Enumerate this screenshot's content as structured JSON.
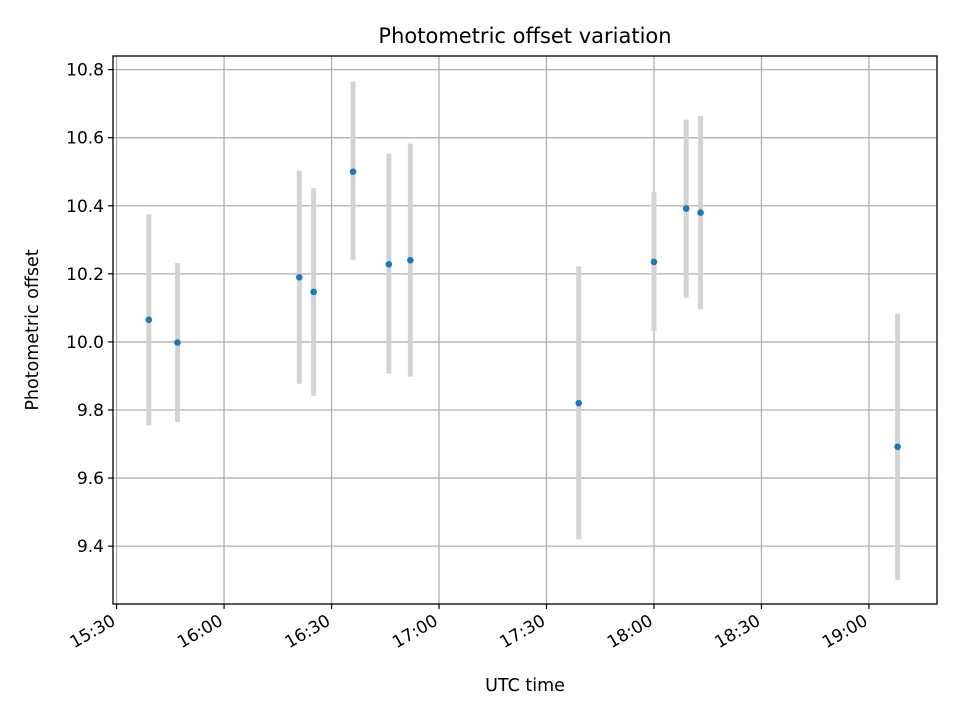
{
  "chart_data": {
    "type": "scatter",
    "title": "Photometric offset variation",
    "xlabel": "UTC time",
    "ylabel": "Photometric offset",
    "x_ticks": [
      "15:30",
      "16:00",
      "16:30",
      "17:00",
      "17:30",
      "18:00",
      "18:30",
      "19:00"
    ],
    "y_ticks": [
      "9.4",
      "9.6",
      "9.8",
      "10.0",
      "10.2",
      "10.4",
      "10.6",
      "10.8"
    ],
    "xlim": [
      "15:29",
      "19:19"
    ],
    "ylim": [
      9.23,
      10.84
    ],
    "grid": true,
    "point_color": "#1f77b4",
    "errorbar_color": "#d3d3d3",
    "points": [
      {
        "x": "15:39",
        "y": 10.065,
        "ylow": 9.755,
        "yhigh": 10.375
      },
      {
        "x": "15:47",
        "y": 9.998,
        "ylow": 9.765,
        "yhigh": 10.232
      },
      {
        "x": "16:21",
        "y": 10.19,
        "ylow": 9.877,
        "yhigh": 10.503
      },
      {
        "x": "16:25",
        "y": 10.147,
        "ylow": 9.842,
        "yhigh": 10.452
      },
      {
        "x": "16:36",
        "y": 10.5,
        "ylow": 10.24,
        "yhigh": 10.765
      },
      {
        "x": "16:46",
        "y": 10.228,
        "ylow": 9.907,
        "yhigh": 10.554
      },
      {
        "x": "16:52",
        "y": 10.24,
        "ylow": 9.898,
        "yhigh": 10.583
      },
      {
        "x": "17:39",
        "y": 9.82,
        "ylow": 9.42,
        "yhigh": 10.222
      },
      {
        "x": "18:00",
        "y": 10.235,
        "ylow": 10.032,
        "yhigh": 10.44
      },
      {
        "x": "18:09",
        "y": 10.392,
        "ylow": 10.13,
        "yhigh": 10.653
      },
      {
        "x": "18:13",
        "y": 10.38,
        "ylow": 10.096,
        "yhigh": 10.664
      },
      {
        "x": "19:08",
        "y": 9.692,
        "ylow": 9.3,
        "yhigh": 10.083
      }
    ]
  }
}
